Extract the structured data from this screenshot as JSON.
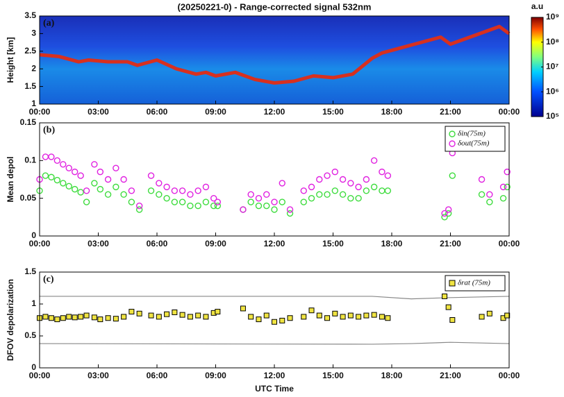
{
  "chart_data": [
    {
      "type": "line",
      "title": "(20250221-0) - Range-corrected signal 532nm",
      "panel_label": "(a)",
      "y_label": "Height [km]",
      "xlim": [
        0,
        24
      ],
      "xticks": [
        {
          "value": 0,
          "label": "00:00"
        },
        {
          "value": 3,
          "label": "03:00"
        },
        {
          "value": 6,
          "label": "06:00"
        },
        {
          "value": 9,
          "label": "09:00"
        },
        {
          "value": 12,
          "label": "12:00"
        },
        {
          "value": 15,
          "label": "15:00"
        },
        {
          "value": 18,
          "label": "18:00"
        },
        {
          "value": 21,
          "label": "21:00"
        },
        {
          "value": 24,
          "label": "00:00"
        }
      ],
      "ylim": [
        1,
        3.5
      ],
      "yticks": [
        1,
        1.5,
        2,
        2.5,
        3,
        3.5
      ],
      "series": [
        {
          "color": "#d7301f",
          "x": [
            0,
            1,
            2,
            2.5,
            3.5,
            4.5,
            5,
            6,
            7,
            8,
            8.5,
            9,
            10,
            11,
            12,
            13,
            14,
            15,
            16,
            17,
            17.5,
            20.5,
            21,
            23.5,
            24
          ],
          "values": [
            2.4,
            2.35,
            2.2,
            2.25,
            2.2,
            2.2,
            2.1,
            2.25,
            2.0,
            1.85,
            1.9,
            1.8,
            1.9,
            1.7,
            1.6,
            1.65,
            1.8,
            1.75,
            1.85,
            2.3,
            2.45,
            2.9,
            2.7,
            3.2,
            3.0
          ]
        }
      ],
      "colorbar": {
        "label": "a.u",
        "log": true,
        "lim": [
          100000,
          1000000000
        ],
        "ticks": [
          {
            "value": 100000,
            "label": "10⁵"
          },
          {
            "value": 1000000,
            "label": "10⁶"
          },
          {
            "value": 10000000,
            "label": "10⁷"
          },
          {
            "value": 100000000,
            "label": "10⁸"
          },
          {
            "value": 1000000000,
            "label": "10⁹"
          }
        ]
      }
    },
    {
      "type": "scatter",
      "panel_label": "(b)",
      "y_label": "Mean depol",
      "xlim": [
        0,
        24
      ],
      "xticks": [
        {
          "value": 0,
          "label": "00:00"
        },
        {
          "value": 3,
          "label": "03:00"
        },
        {
          "value": 6,
          "label": "06:00"
        },
        {
          "value": 9,
          "label": "09:00"
        },
        {
          "value": 12,
          "label": "12:00"
        },
        {
          "value": 15,
          "label": "15:00"
        },
        {
          "value": 18,
          "label": "18:00"
        },
        {
          "value": 21,
          "label": "21:00"
        },
        {
          "value": 24,
          "label": "00:00"
        }
      ],
      "ylim": [
        0,
        0.15
      ],
      "yticks": [
        0,
        0.05,
        0.1,
        0.15
      ],
      "legend": "upper right",
      "x": [
        0,
        0.3,
        0.6,
        0.9,
        1.2,
        1.5,
        1.8,
        2.1,
        2.4,
        2.8,
        3.1,
        3.5,
        3.9,
        4.3,
        4.7,
        5.1,
        5.7,
        6.1,
        6.5,
        6.9,
        7.3,
        7.7,
        8.1,
        8.5,
        8.9,
        9.1,
        10.4,
        10.8,
        11.2,
        11.6,
        12.0,
        12.4,
        12.8,
        13.5,
        13.9,
        14.3,
        14.7,
        15.1,
        15.5,
        15.9,
        16.3,
        16.7,
        17.1,
        17.5,
        17.8,
        20.7,
        20.9,
        21.1,
        22.6,
        23.0,
        23.7,
        23.9
      ],
      "series": [
        {
          "name": "δin(75m)",
          "color": "#3ddc3d",
          "marker": "circle",
          "values": [
            0.06,
            0.08,
            0.078,
            0.074,
            0.07,
            0.066,
            0.062,
            0.058,
            0.045,
            0.07,
            0.062,
            0.055,
            0.065,
            0.055,
            0.045,
            0.035,
            0.06,
            0.055,
            0.05,
            0.045,
            0.045,
            0.04,
            0.04,
            0.045,
            0.04,
            0.04,
            0.035,
            0.045,
            0.04,
            0.04,
            0.035,
            0.045,
            0.03,
            0.045,
            0.05,
            0.055,
            0.055,
            0.06,
            0.055,
            0.05,
            0.05,
            0.06,
            0.065,
            0.06,
            0.06,
            0.025,
            0.03,
            0.08,
            0.055,
            0.045,
            0.05,
            0.065
          ]
        },
        {
          "name": "δout(75m)",
          "color": "#e020e0",
          "marker": "circle",
          "values": [
            0.075,
            0.105,
            0.105,
            0.1,
            0.095,
            0.09,
            0.085,
            0.08,
            0.06,
            0.095,
            0.085,
            0.075,
            0.09,
            0.075,
            0.06,
            0.04,
            0.08,
            0.07,
            0.065,
            0.06,
            0.06,
            0.055,
            0.06,
            0.065,
            0.05,
            0.045,
            0.035,
            0.055,
            0.05,
            0.055,
            0.045,
            0.07,
            0.035,
            0.06,
            0.065,
            0.075,
            0.08,
            0.085,
            0.075,
            0.07,
            0.065,
            0.075,
            0.1,
            0.085,
            0.08,
            0.03,
            0.035,
            0.11,
            0.075,
            0.055,
            0.065,
            0.085
          ]
        }
      ]
    },
    {
      "type": "scatter",
      "panel_label": "(c)",
      "y_label": "DFOV depolarization",
      "x_label": "UTC Time",
      "xlim": [
        0,
        24
      ],
      "xticks": [
        {
          "value": 0,
          "label": "00:00"
        },
        {
          "value": 3,
          "label": "03:00"
        },
        {
          "value": 6,
          "label": "06:00"
        },
        {
          "value": 9,
          "label": "09:00"
        },
        {
          "value": 12,
          "label": "12:00"
        },
        {
          "value": 15,
          "label": "15:00"
        },
        {
          "value": 18,
          "label": "18:00"
        },
        {
          "value": 21,
          "label": "21:00"
        },
        {
          "value": 24,
          "label": "00:00"
        }
      ],
      "ylim": [
        0,
        1.5
      ],
      "yticks": [
        0,
        0.5,
        1,
        1.5
      ],
      "legend": "upper right",
      "x": [
        0,
        0.3,
        0.6,
        0.9,
        1.2,
        1.5,
        1.8,
        2.1,
        2.4,
        2.8,
        3.1,
        3.5,
        3.9,
        4.3,
        4.7,
        5.1,
        5.7,
        6.1,
        6.5,
        6.9,
        7.3,
        7.7,
        8.1,
        8.5,
        8.9,
        9.1,
        10.4,
        10.8,
        11.2,
        11.6,
        12.0,
        12.4,
        12.8,
        13.5,
        13.9,
        14.3,
        14.7,
        15.1,
        15.5,
        15.9,
        16.3,
        16.7,
        17.1,
        17.5,
        17.8,
        20.7,
        20.9,
        21.1,
        22.6,
        23.0,
        23.7,
        23.9
      ],
      "series": [
        {
          "name": "δrat (75m)",
          "color": "#f0e442",
          "marker": "square",
          "values": [
            0.78,
            0.8,
            0.78,
            0.76,
            0.78,
            0.8,
            0.79,
            0.8,
            0.82,
            0.79,
            0.76,
            0.78,
            0.77,
            0.8,
            0.88,
            0.85,
            0.82,
            0.8,
            0.84,
            0.87,
            0.83,
            0.8,
            0.82,
            0.8,
            0.86,
            0.88,
            0.93,
            0.8,
            0.76,
            0.82,
            0.72,
            0.74,
            0.78,
            0.8,
            0.9,
            0.82,
            0.78,
            0.85,
            0.8,
            0.82,
            0.8,
            0.82,
            0.83,
            0.8,
            0.78,
            1.12,
            0.95,
            0.75,
            0.8,
            0.85,
            0.78,
            0.82
          ]
        }
      ],
      "lines": [
        {
          "color": "#888888",
          "x": [
            0,
            17,
            19,
            21,
            24
          ],
          "values": [
            1.12,
            1.12,
            1.08,
            1.1,
            1.12
          ]
        },
        {
          "color": "#888888",
          "x": [
            0,
            17,
            19,
            21,
            24
          ],
          "values": [
            0.38,
            0.37,
            0.38,
            0.4,
            0.38
          ]
        }
      ]
    }
  ]
}
